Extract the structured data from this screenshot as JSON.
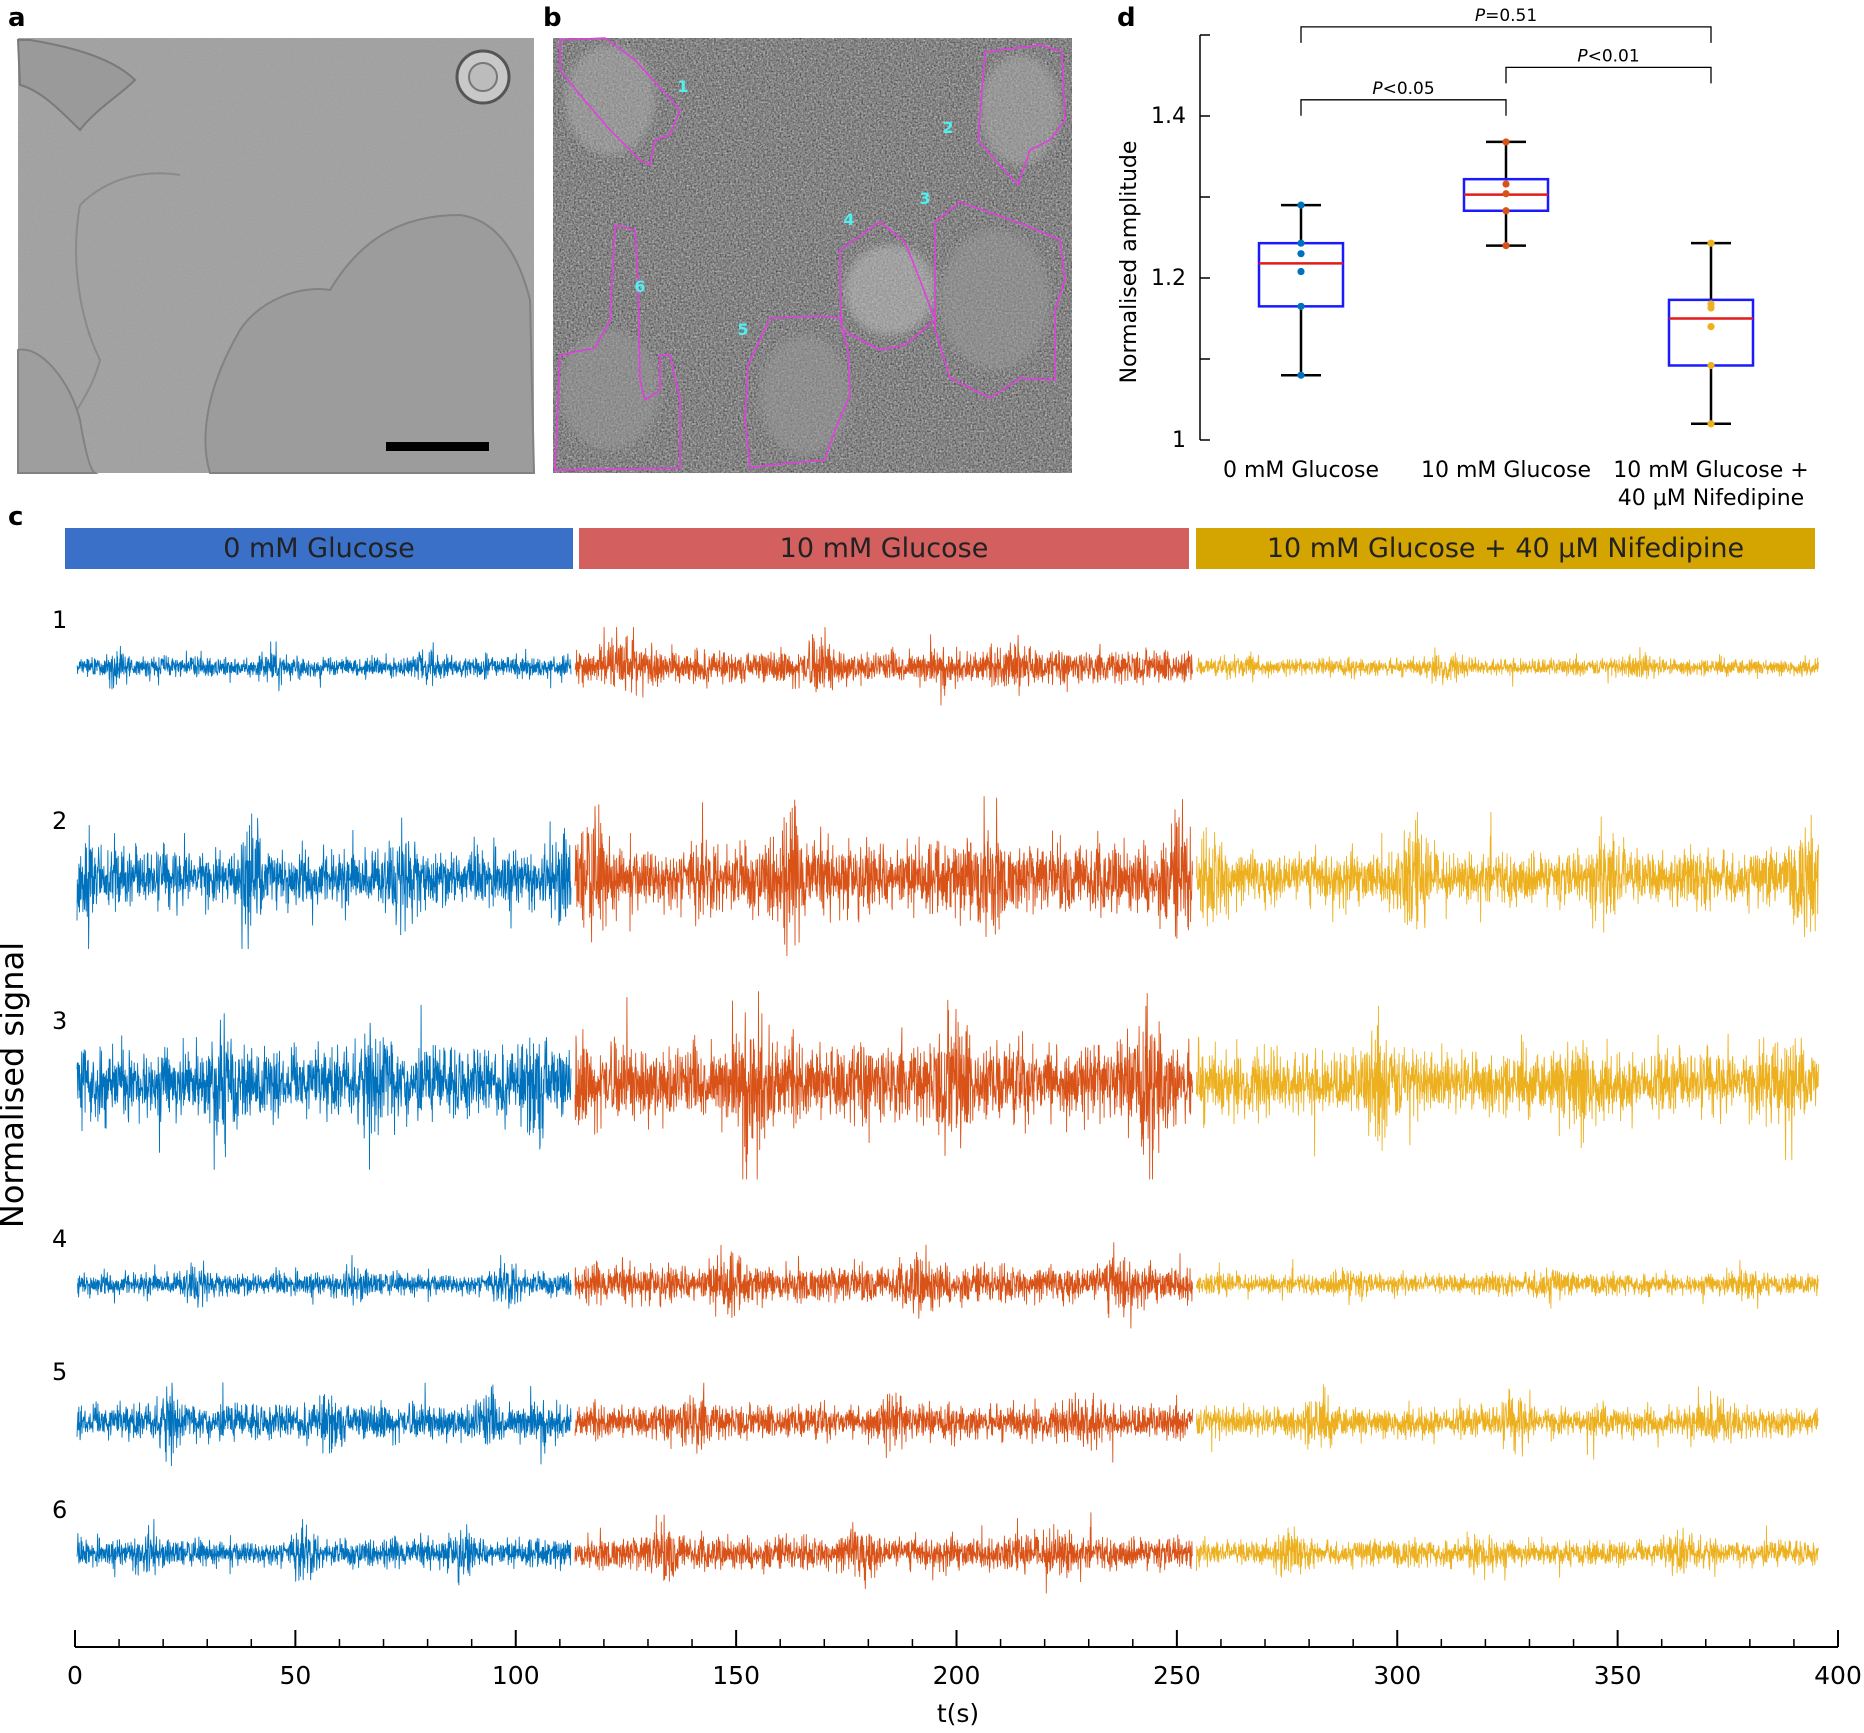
{
  "panels": {
    "a": "a",
    "b": "b",
    "c": "c",
    "d": "d"
  },
  "panel_b": {
    "roi_labels": [
      "1",
      "2",
      "3",
      "4",
      "5",
      "6"
    ]
  },
  "panel_c": {
    "conditions": [
      {
        "label": "0 mM Glucose",
        "color": "#3b70c8"
      },
      {
        "label": "10 mM Glucose",
        "color": "#d45f5f"
      },
      {
        "label": "10 mM Glucose + 40 μM Nifedipine",
        "color": "#d4a500"
      }
    ],
    "trace_colors": [
      "#0072BD",
      "#D95319",
      "#EDB120"
    ],
    "ylabel": "Normalised signal",
    "xlabel": "t(s)",
    "xticks": [
      "0",
      "50",
      "100",
      "150",
      "200",
      "250",
      "300",
      "350",
      "400"
    ]
  },
  "chart_data": [
    {
      "type": "box",
      "panel": "d",
      "ylabel": "Normalised amplitude",
      "ylim": [
        1.0,
        1.5
      ],
      "yticks": [
        "1",
        "1.2",
        "1.4"
      ],
      "categories": [
        "0 mM Glucose",
        "10 mM Glucose",
        "10 mM Glucose + 40 μM Nifedipine"
      ],
      "category_lines": [
        [
          "0 mM Glucose"
        ],
        [
          "10 mM Glucose"
        ],
        [
          "10 mM Glucose +",
          "40 μM Nifedipine"
        ]
      ],
      "boxes": [
        {
          "whisker_low": 1.08,
          "q1": 1.165,
          "median": 1.218,
          "q3": 1.243,
          "whisker_high": 1.29,
          "points": [
            1.29,
            1.243,
            1.23,
            1.208,
            1.165,
            1.08
          ],
          "point_color": "#0072BD"
        },
        {
          "whisker_low": 1.24,
          "q1": 1.283,
          "median": 1.303,
          "q3": 1.322,
          "whisker_high": 1.368,
          "points": [
            1.368,
            1.316,
            1.304,
            1.283,
            1.24
          ],
          "point_color": "#D95319"
        },
        {
          "whisker_low": 1.02,
          "q1": 1.092,
          "median": 1.15,
          "q3": 1.173,
          "whisker_high": 1.243,
          "points": [
            1.243,
            1.168,
            1.163,
            1.14,
            1.092,
            1.02
          ],
          "point_color": "#EDB120"
        }
      ],
      "significance": [
        {
          "from": 0,
          "to": 1,
          "p": "P",
          "rest": "<0.05",
          "level": 1.42
        },
        {
          "from": 1,
          "to": 2,
          "p": "P",
          "rest": "<0.01",
          "level": 1.46
        },
        {
          "from": 0,
          "to": 2,
          "p": "P",
          "rest": "=0.51",
          "level": 1.51
        }
      ]
    },
    {
      "type": "line",
      "panel": "c",
      "xlabel": "t(s)",
      "ylabel": "Normalised signal",
      "xlim": [
        0,
        400
      ],
      "xticks": [
        0,
        50,
        100,
        150,
        200,
        250,
        300,
        350,
        400
      ],
      "segments": [
        {
          "condition": "0 mM Glucose",
          "x_start": 0,
          "x_end": 113
        },
        {
          "condition": "10 mM Glucose",
          "x_start": 113,
          "x_end": 254
        },
        {
          "condition": "10 mM Glucose + 40 μM Nifedipine",
          "x_start": 254,
          "x_end": 396
        }
      ],
      "series": [
        {
          "name": "1",
          "relative_amplitude": [
            0.35,
            0.55,
            0.28
          ]
        },
        {
          "name": "2",
          "relative_amplitude": [
            0.7,
            0.85,
            0.65
          ]
        },
        {
          "name": "3",
          "relative_amplitude": [
            0.9,
            1.0,
            0.8
          ]
        },
        {
          "name": "4",
          "relative_amplitude": [
            0.35,
            0.55,
            0.3
          ]
        },
        {
          "name": "5",
          "relative_amplitude": [
            0.7,
            0.65,
            0.6
          ]
        },
        {
          "name": "6",
          "relative_amplitude": [
            0.5,
            0.6,
            0.45
          ]
        }
      ]
    }
  ]
}
